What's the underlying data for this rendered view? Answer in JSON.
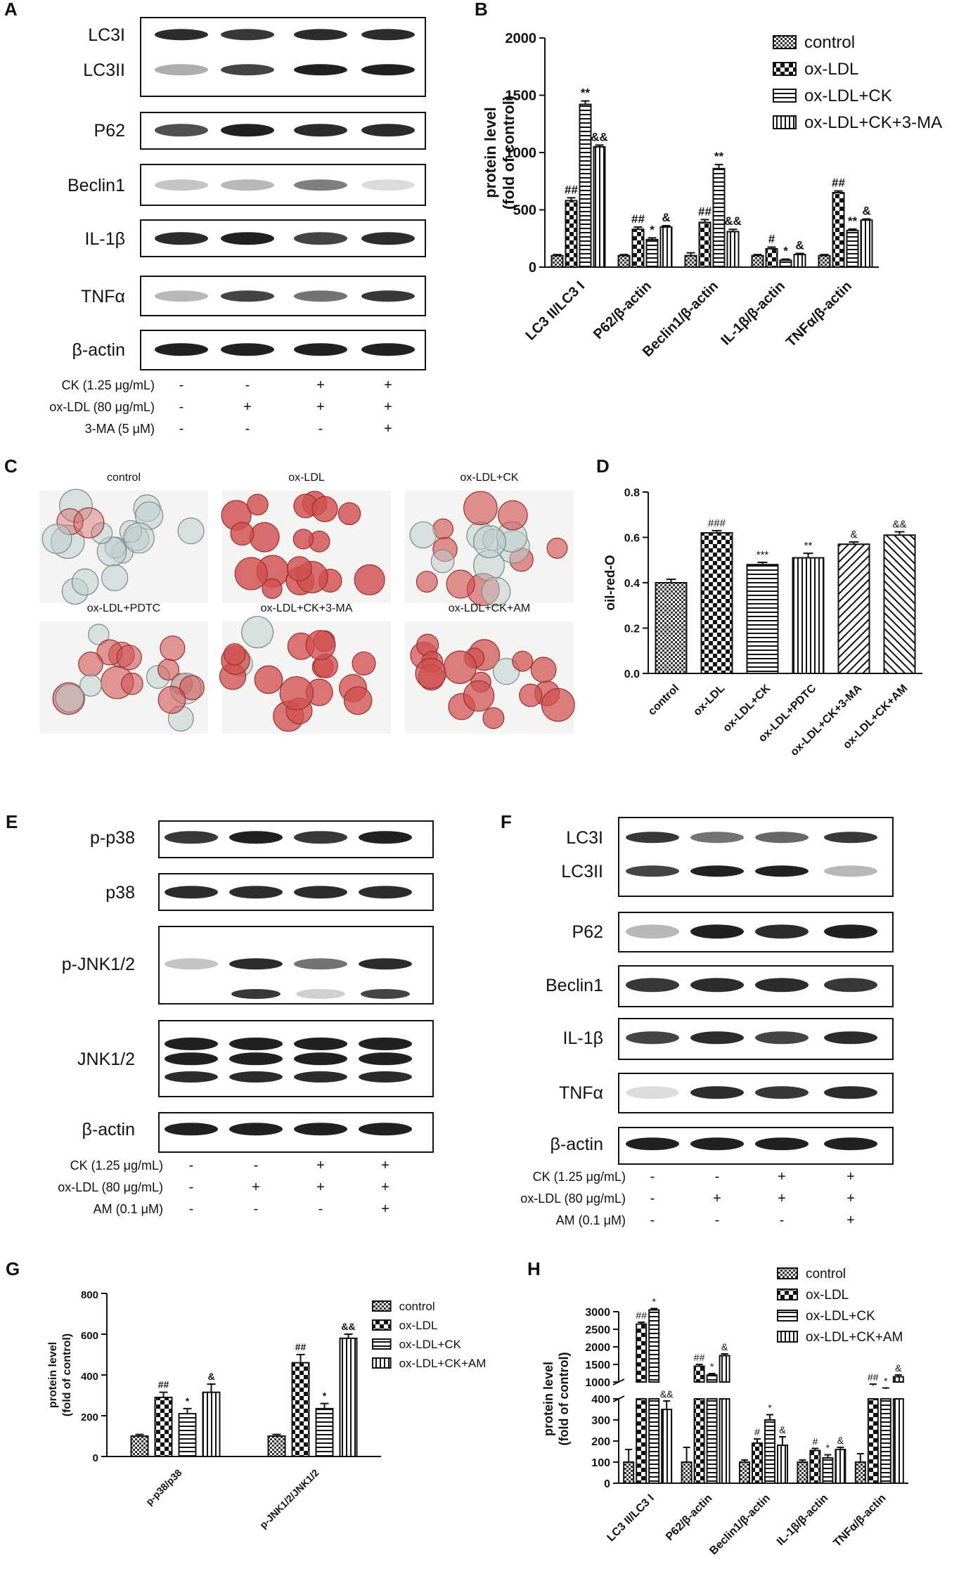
{
  "panels": [
    {
      "letter": "A",
      "x": 6,
      "y": 22
    },
    {
      "letter": "B",
      "x": 675,
      "y": 22
    },
    {
      "letter": "C",
      "x": 6,
      "y": 672
    },
    {
      "letter": "D",
      "x": 848,
      "y": 672
    },
    {
      "letter": "E",
      "x": 8,
      "y": 1178
    },
    {
      "letter": "F",
      "x": 712,
      "y": 1178
    },
    {
      "letter": "G",
      "x": 8,
      "y": 1814
    },
    {
      "letter": "H",
      "x": 750,
      "y": 1814
    }
  ],
  "legend_labels_4": [
    "control",
    "ox-LDL",
    "ox-LDL+CK",
    "ox-LDL+CK+3-MA"
  ],
  "legend_labels_am": [
    "control",
    "ox-LDL",
    "ox-LDL+CK",
    "ox-LDL+CK+AM"
  ],
  "blot_A": {
    "labels": [
      "LC3I",
      "LC3II",
      "P62",
      "Beclin1",
      "IL-1β",
      "TNFα",
      "β-actin"
    ],
    "treatments": [
      {
        "label": "CK (1.25 μg/mL)",
        "signs": [
          "-",
          "-",
          "+",
          "+"
        ]
      },
      {
        "label": "ox-LDL (80 μg/mL)",
        "signs": [
          "-",
          "+",
          "+",
          "+"
        ]
      },
      {
        "label": "3-MA (5 μM)",
        "signs": [
          "-",
          "-",
          "-",
          "+"
        ]
      }
    ]
  },
  "blot_E": {
    "labels": [
      "p-p38",
      "p38",
      "p-JNK1/2",
      "JNK1/2",
      "β-actin"
    ],
    "treatments": [
      {
        "label": "CK (1.25 μg/mL)",
        "signs": [
          "-",
          "-",
          "+",
          "+"
        ]
      },
      {
        "label": "ox-LDL (80 μg/mL)",
        "signs": [
          "-",
          "+",
          "+",
          "+"
        ]
      },
      {
        "label": "AM (0.1 μM)",
        "signs": [
          "-",
          "-",
          "-",
          "+"
        ]
      }
    ]
  },
  "blot_F": {
    "labels": [
      "LC3I",
      "LC3II",
      "P62",
      "Beclin1",
      "IL-1β",
      "TNFα",
      "β-actin"
    ],
    "treatments": [
      {
        "label": "CK (1.25 μg/mL)",
        "signs": [
          "-",
          "-",
          "+",
          "+"
        ]
      },
      {
        "label": "ox-LDL (80 μg/mL)",
        "signs": [
          "-",
          "+",
          "+",
          "+"
        ]
      },
      {
        "label": "AM (0.1 μM)",
        "signs": [
          "-",
          "-",
          "-",
          "+"
        ]
      }
    ]
  },
  "micrographs_C": {
    "labels": [
      "control",
      "ox-LDL",
      "ox-LDL+CK",
      "ox-LDL+PDTC",
      "ox-LDL+CK+3-MA",
      "ox-LDL+CK+AM"
    ]
  },
  "colors": {
    "ink": "#111111",
    "stain": "#d05050",
    "bg_micro": "#f6f3f3"
  },
  "chart_data": [
    {
      "panel": "B",
      "type": "bar",
      "categories": [
        "LC3 II/LC3 I",
        "P62/β-actin",
        "Beclin1/β-actin",
        "IL-1β/β-actin",
        "TNFα/β-actin"
      ],
      "series": [
        {
          "name": "control",
          "values": [
            100,
            100,
            100,
            100,
            100
          ],
          "errors": [
            10,
            10,
            25,
            10,
            10
          ]
        },
        {
          "name": "ox-LDL",
          "values": [
            580,
            330,
            390,
            160,
            650
          ],
          "errors": [
            25,
            20,
            25,
            15,
            15
          ]
        },
        {
          "name": "ox-LDL+CK",
          "values": [
            1420,
            240,
            860,
            60,
            320
          ],
          "errors": [
            30,
            15,
            35,
            10,
            12
          ]
        },
        {
          "name": "ox-LDL+CK+3-MA",
          "values": [
            1050,
            350,
            310,
            110,
            410
          ],
          "errors": [
            15,
            12,
            20,
            10,
            10
          ]
        }
      ],
      "annotations": [
        [
          "",
          "##",
          "**",
          "&&"
        ],
        [
          "",
          "##",
          "*",
          "&"
        ],
        [
          "",
          "##",
          "**",
          "&&"
        ],
        [
          "",
          "#",
          "*",
          "&"
        ],
        [
          "",
          "##",
          "**",
          "&"
        ]
      ],
      "ylabel": "protein level\n(fold of control)",
      "ylim": [
        0,
        2000
      ],
      "yticks": [
        0,
        500,
        1000,
        1500,
        2000
      ],
      "legend": "top-right",
      "grid": false
    },
    {
      "panel": "D",
      "type": "bar",
      "categories": [
        "control",
        "ox-LDL",
        "ox-LDL+CK",
        "ox-LDL+PDTC",
        "ox-LDL+CK+3-MA",
        "ox-LDL+CK+AM"
      ],
      "values": [
        0.4,
        0.62,
        0.48,
        0.51,
        0.57,
        0.61
      ],
      "errors": [
        0.015,
        0.01,
        0.01,
        0.02,
        0.01,
        0.015
      ],
      "annotations": [
        "",
        "###",
        "***",
        "**",
        "&",
        "&&"
      ],
      "ylabel": "oil-red-O",
      "ylim": [
        0,
        0.8
      ],
      "yticks": [
        0.0,
        0.2,
        0.4,
        0.6,
        0.8
      ],
      "grid": false
    },
    {
      "panel": "G",
      "type": "bar",
      "categories": [
        "p-p38/p38",
        "p-JNK1/2/JNK1/2"
      ],
      "series": [
        {
          "name": "control",
          "values": [
            100,
            100
          ],
          "errors": [
            8,
            8
          ]
        },
        {
          "name": "ox-LDL",
          "values": [
            290,
            460
          ],
          "errors": [
            25,
            40
          ]
        },
        {
          "name": "ox-LDL+CK",
          "values": [
            210,
            235
          ],
          "errors": [
            25,
            25
          ]
        },
        {
          "name": "ox-LDL+CK+AM",
          "values": [
            315,
            580
          ],
          "errors": [
            40,
            20
          ]
        }
      ],
      "annotations": [
        [
          "",
          "##",
          "*",
          "&"
        ],
        [
          "",
          "##",
          "*",
          "&&"
        ]
      ],
      "ylabel": "protein level\n(fold of control)",
      "ylim": [
        0,
        800
      ],
      "yticks": [
        0,
        200,
        400,
        600,
        800
      ],
      "legend": "top-right",
      "grid": false
    },
    {
      "panel": "H",
      "type": "bar",
      "categories": [
        "LC3 II/LC3 I",
        "P62/β-actin",
        "Beclin1/β-actin",
        "IL-1β/β-actin",
        "TNFα/β-actin"
      ],
      "series": [
        {
          "name": "control",
          "values": [
            100,
            100,
            100,
            100,
            100
          ],
          "errors": [
            60,
            70,
            10,
            10,
            40
          ]
        },
        {
          "name": "ox-LDL",
          "values": [
            2650,
            1450,
            190,
            155,
            900
          ],
          "errors": [
            50,
            50,
            20,
            10,
            40
          ]
        },
        {
          "name": "ox-LDL+CK",
          "values": [
            3050,
            1200,
            300,
            120,
            800
          ],
          "errors": [
            40,
            40,
            25,
            15,
            30
          ]
        },
        {
          "name": "ox-LDL+CK+AM",
          "values": [
            350,
            1750,
            180,
            160,
            1150
          ],
          "errors": [
            40,
            50,
            40,
            10,
            50
          ]
        }
      ],
      "annotations": [
        [
          "",
          "##",
          "*",
          "&&"
        ],
        [
          "",
          "##",
          "*",
          "&"
        ],
        [
          "",
          "#",
          "*",
          "&"
        ],
        [
          "",
          "#",
          "*",
          "&"
        ],
        [
          "",
          "##",
          "*",
          "&"
        ]
      ],
      "ylabel": "protein level\n(fold of control)",
      "ylim": [
        0,
        3000
      ],
      "yticks_lower": [
        0,
        100,
        200,
        300,
        400
      ],
      "yticks_upper": [
        1000,
        1500,
        2000,
        2500,
        3000
      ],
      "axis_break": [
        400,
        1000
      ],
      "legend": "top-right",
      "grid": false
    }
  ]
}
